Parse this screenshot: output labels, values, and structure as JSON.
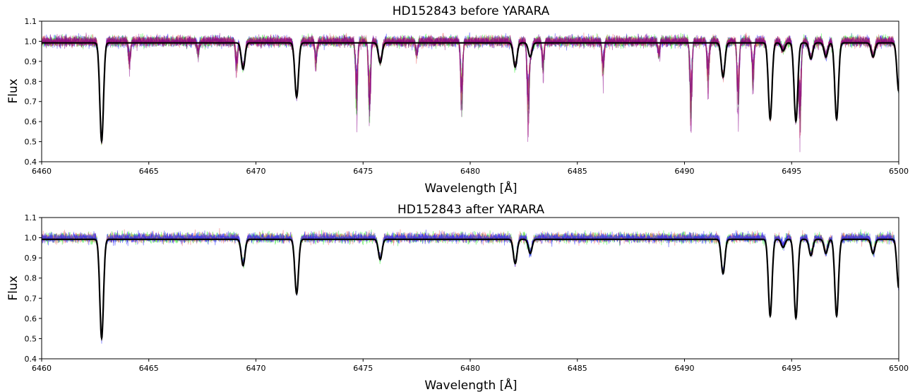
{
  "chart_data": [
    {
      "type": "line",
      "title": "HD152843 before YARARA",
      "xlabel": "Wavelength [Å]",
      "ylabel": "Flux",
      "xlim": [
        6460,
        6500
      ],
      "ylim": [
        0.4,
        1.1
      ],
      "xticks": [
        6460,
        6465,
        6470,
        6475,
        6480,
        6485,
        6490,
        6495,
        6500
      ],
      "yticks": [
        0.4,
        0.5,
        0.6,
        0.7,
        0.8,
        0.9,
        1.0,
        1.1
      ],
      "grid": false,
      "series": [
        {
          "color": "#000000",
          "stellar_lines": [
            {
              "center": 6462.8,
              "depth": 0.49
            },
            {
              "center": 6469.4,
              "depth": 0.13
            },
            {
              "center": 6471.9,
              "depth": 0.27
            },
            {
              "center": 6475.8,
              "depth": 0.1
            },
            {
              "center": 6482.1,
              "depth": 0.12
            },
            {
              "center": 6482.8,
              "depth": 0.07
            },
            {
              "center": 6491.8,
              "depth": 0.17
            },
            {
              "center": 6494.0,
              "depth": 0.38
            },
            {
              "center": 6494.6,
              "depth": 0.04
            },
            {
              "center": 6495.2,
              "depth": 0.39
            },
            {
              "center": 6495.9,
              "depth": 0.08
            },
            {
              "center": 6496.6,
              "depth": 0.07
            },
            {
              "center": 6497.1,
              "depth": 0.38
            },
            {
              "center": 6498.8,
              "depth": 0.07
            },
            {
              "center": 6500.0,
              "depth": 0.24
            }
          ]
        },
        {
          "color": "#2020ff",
          "telluric_lines": [
            {
              "center": 6464.1,
              "depth": 0.15
            },
            {
              "center": 6467.3,
              "depth": 0.08
            },
            {
              "center": 6469.1,
              "depth": 0.18
            },
            {
              "center": 6472.8,
              "depth": 0.14
            },
            {
              "center": 6474.7,
              "depth": 0.4
            },
            {
              "center": 6475.3,
              "depth": 0.45
            },
            {
              "center": 6477.5,
              "depth": 0.1
            },
            {
              "center": 6479.6,
              "depth": 0.4
            },
            {
              "center": 6482.7,
              "depth": 0.42
            },
            {
              "center": 6483.4,
              "depth": 0.18
            },
            {
              "center": 6486.2,
              "depth": 0.2
            },
            {
              "center": 6488.8,
              "depth": 0.1
            },
            {
              "center": 6490.3,
              "depth": 0.45
            },
            {
              "center": 6491.1,
              "depth": 0.25
            },
            {
              "center": 6492.5,
              "depth": 0.4
            },
            {
              "center": 6493.2,
              "depth": 0.25
            },
            {
              "center": 6495.4,
              "depth": 0.45
            }
          ]
        },
        {
          "color": "#22ee22"
        },
        {
          "color": "#ee6666"
        },
        {
          "color": "#880088"
        }
      ]
    },
    {
      "type": "line",
      "title": "HD152843 after YARARA",
      "xlabel": "Wavelength [Å]",
      "ylabel": "Flux",
      "xlim": [
        6460,
        6500
      ],
      "ylim": [
        0.4,
        1.1
      ],
      "xticks": [
        6460,
        6465,
        6470,
        6475,
        6480,
        6485,
        6490,
        6495,
        6500
      ],
      "yticks": [
        0.4,
        0.5,
        0.6,
        0.7,
        0.8,
        0.9,
        1.0,
        1.1
      ],
      "grid": false,
      "series": [
        {
          "color": "#000000",
          "stellar_lines": [
            {
              "center": 6462.8,
              "depth": 0.49
            },
            {
              "center": 6469.4,
              "depth": 0.13
            },
            {
              "center": 6471.9,
              "depth": 0.27
            },
            {
              "center": 6475.8,
              "depth": 0.1
            },
            {
              "center": 6482.1,
              "depth": 0.12
            },
            {
              "center": 6482.8,
              "depth": 0.07
            },
            {
              "center": 6491.8,
              "depth": 0.17
            },
            {
              "center": 6494.0,
              "depth": 0.38
            },
            {
              "center": 6494.6,
              "depth": 0.04
            },
            {
              "center": 6495.2,
              "depth": 0.39
            },
            {
              "center": 6495.9,
              "depth": 0.08
            },
            {
              "center": 6496.6,
              "depth": 0.07
            },
            {
              "center": 6497.1,
              "depth": 0.38
            },
            {
              "center": 6498.8,
              "depth": 0.07
            },
            {
              "center": 6500.0,
              "depth": 0.24
            }
          ]
        },
        {
          "color": "#22ee22"
        },
        {
          "color": "#ee6666"
        },
        {
          "color": "#2020ff"
        }
      ]
    }
  ]
}
